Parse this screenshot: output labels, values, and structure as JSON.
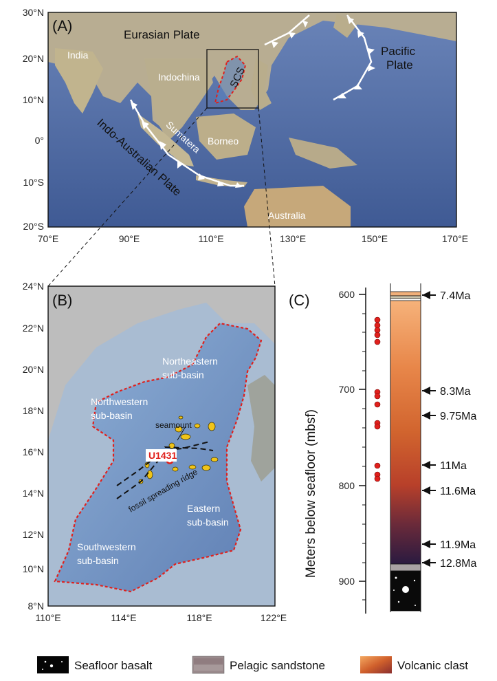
{
  "panel_a": {
    "label": "(A)",
    "lat_ticks": [
      "30°N",
      "20°N",
      "10°N",
      "0°",
      "10°S",
      "20°S"
    ],
    "lon_ticks": [
      "70°E",
      "90°E",
      "110°E",
      "130°E",
      "150°E",
      "170°E"
    ],
    "places": {
      "eurasian": "Eurasian Plate",
      "india": "India",
      "indochina": "Indochina",
      "scs": "SCS",
      "pacific1": "Pacific",
      "pacific2": "Plate",
      "sumatera": "Sumatera",
      "borneo": "Borneo",
      "indo_australian": "Indo-Australian Plate",
      "australia": "Australia"
    }
  },
  "panel_b": {
    "label": "(B)",
    "lat_ticks": [
      "24°N",
      "22°N",
      "20°N",
      "18°N",
      "16°N",
      "14°N",
      "12°N",
      "10°N",
      "8°N"
    ],
    "lon_ticks": [
      "110°E",
      "114°E",
      "118°E",
      "122°E"
    ],
    "places": {
      "ne1": "Northeastern",
      "ne2": "sub-basin",
      "nw1": "Northwestern",
      "nw2": "sub-basin",
      "seamount": "seamount",
      "site": "U1431",
      "ridge": "fossil spreading ridge",
      "e1": "Eastern",
      "e2": "sub-basin",
      "sw1": "Southwestern",
      "sw2": "sub-basin"
    }
  },
  "panel_c": {
    "label": "(C)",
    "axis_label": "Meters below seafloor (mbsf)",
    "depth_ticks": [
      "600",
      "700",
      "800",
      "900"
    ],
    "ages": [
      "7.4Ma",
      "8.3Ma",
      "9.75Ma",
      "11Ma",
      "11.6Ma",
      "11.9Ma",
      "12.8Ma"
    ]
  },
  "legend": {
    "basalt": "Seafloor basalt",
    "sandstone": "Pelagic sandstone",
    "volcanic": "Volcanic clast"
  },
  "colors": {
    "basin_outline": "#e0201c",
    "site_marker": "#e0201c",
    "ocean": "#4f6fa8",
    "land": "#b9b4a2",
    "seamount": "#f0c419"
  }
}
